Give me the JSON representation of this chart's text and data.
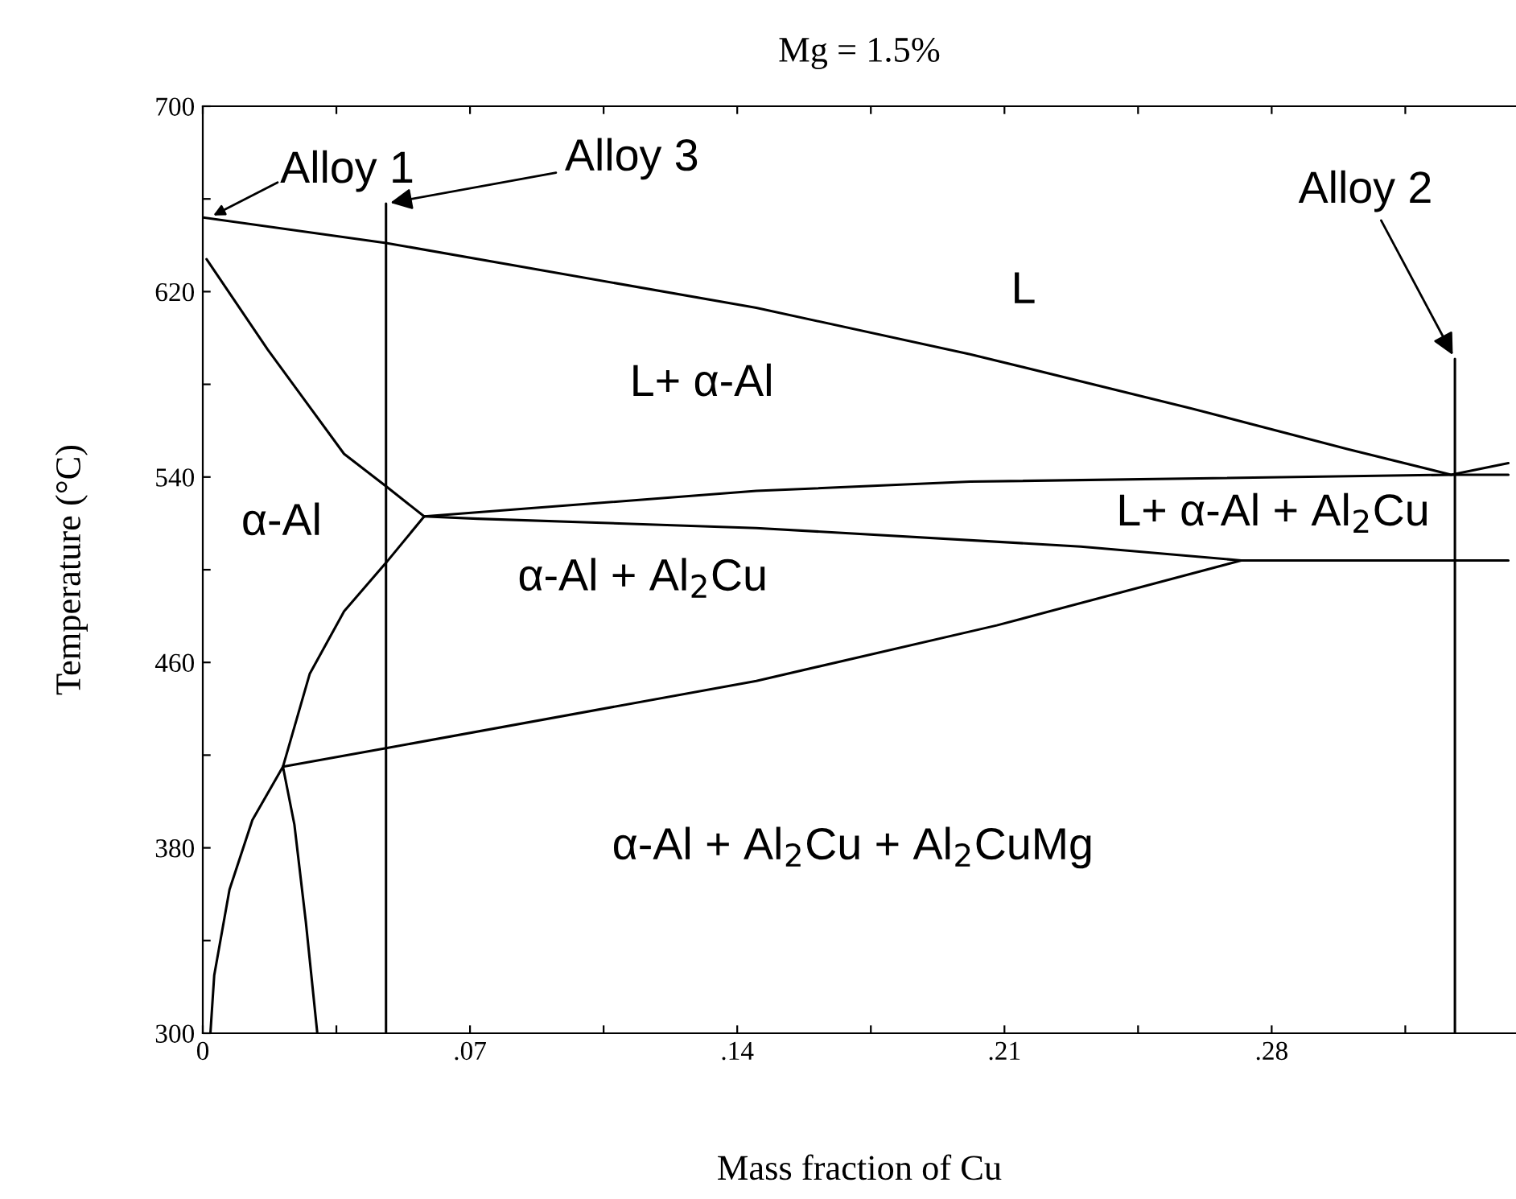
{
  "chart_data": {
    "type": "line",
    "title": "Mg = 1.5%",
    "xlabel": "Mass fraction of Cu",
    "ylabel": "Temperature (°C)",
    "xlim": [
      0,
      0.344
    ],
    "ylim": [
      300,
      700
    ],
    "xticks": [
      0,
      {
        "value": 0.035,
        "label": null
      },
      {
        "value": 0.07,
        "label": ".07"
      },
      {
        "value": 0.105,
        "label": null
      },
      {
        "value": 0.14,
        "label": ".14"
      },
      {
        "value": 0.175,
        "label": null
      },
      {
        "value": 0.21,
        "label": ".21"
      },
      {
        "value": 0.245,
        "label": null
      },
      {
        "value": 0.28,
        "label": ".28"
      },
      {
        "value": 0.315,
        "label": null
      }
    ],
    "yticks": [
      300,
      {
        "value": 340,
        "label": null
      },
      380,
      {
        "value": 420,
        "label": null
      },
      460,
      {
        "value": 500,
        "label": null
      },
      540,
      {
        "value": 580,
        "label": null
      },
      620,
      {
        "value": 660,
        "label": null
      },
      700
    ],
    "grid": false,
    "legend": false,
    "marker": "none",
    "line_style": "solid",
    "series": [
      {
        "color": "#000000",
        "x": [
          0,
          0.048,
          0.145,
          0.201,
          0.258,
          0.3,
          0.327,
          0.342
        ],
        "values": [
          652,
          641,
          613,
          593,
          570,
          552,
          541,
          546
        ]
      },
      {
        "color": "#000000",
        "x": [
          0.001,
          0.017,
          0.037,
          0.048,
          0.058
        ],
        "values": [
          634,
          595,
          550,
          536,
          523
        ]
      },
      {
        "color": "#000000",
        "x": [
          0.058,
          0.145,
          0.201,
          0.328,
          0.342
        ],
        "values": [
          523,
          534,
          538,
          541,
          541
        ]
      },
      {
        "color": "#000000",
        "x": [
          0.058,
          0.072,
          0.145,
          0.23,
          0.272,
          0.342
        ],
        "values": [
          523,
          522,
          518,
          510,
          504,
          504
        ]
      },
      {
        "color": "#000000",
        "x": [
          0.021,
          0.048,
          0.145,
          0.208,
          0.272
        ],
        "values": [
          415,
          423,
          452,
          476,
          504
        ]
      },
      {
        "color": "#000000",
        "x": [
          0.058,
          0.048,
          0.037,
          0.028,
          0.021,
          0.013,
          0.007,
          0.003,
          0.002
        ],
        "values": [
          523,
          503,
          482,
          455,
          415,
          392,
          362,
          325,
          300
        ]
      },
      {
        "color": "#000000",
        "x": [
          0.021,
          0.024,
          0.027,
          0.03
        ],
        "values": [
          415,
          390,
          348,
          300
        ]
      },
      {
        "color": "#000000",
        "x": [
          0.048,
          0.048
        ],
        "values": [
          658,
          300
        ]
      },
      {
        "color": "#000000",
        "x": [
          0.328,
          0.328
        ],
        "values": [
          591,
          300
        ]
      }
    ],
    "annotations": [
      "Alloy 1",
      {
        "text": "Alloy 3",
        "x": 0.048,
        "y": 658
      },
      {
        "text": "Alloy 2",
        "x": 0.328,
        "y": 591
      },
      "L",
      "L+ α-Al",
      "α-Al",
      "L+ α-Al + Al$_{2}$Cu",
      "α-Al + Al$_{2}$Cu",
      "α-Al + Al$_{2}$Cu + Al$_{2}$CuMg"
    ]
  }
}
